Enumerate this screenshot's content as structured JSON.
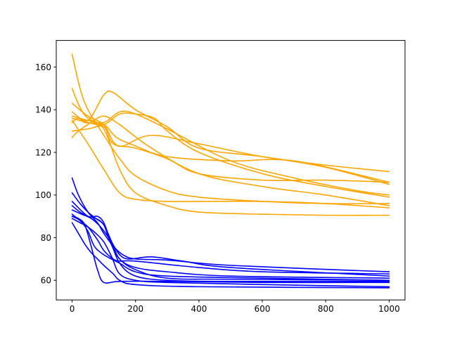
{
  "chart_data": {
    "type": "line",
    "title": "",
    "xlabel": "",
    "ylabel": "",
    "xlim": [
      -50,
      1050
    ],
    "ylim": [
      50.8,
      172.5
    ],
    "x_ticks": [
      0,
      200,
      400,
      600,
      800,
      1000
    ],
    "y_ticks": [
      60,
      80,
      100,
      120,
      140,
      160
    ],
    "grid": false,
    "legend": "none",
    "series": [
      {
        "color": "#FFA500",
        "x": [
          0,
          25,
          50,
          100,
          150,
          200,
          300,
          400,
          600,
          800,
          1000
        ],
        "y": [
          166,
          150,
          140,
          128,
          117,
          109,
          102,
          99,
          97,
          96,
          96
        ]
      },
      {
        "color": "#FFA500",
        "x": [
          0,
          25,
          50,
          100,
          150,
          200,
          300,
          400,
          600,
          800,
          1000
        ],
        "y": [
          150,
          141,
          136,
          131,
          112,
          101,
          95,
          92,
          91,
          90.5,
          90.5
        ]
      },
      {
        "color": "#FFA500",
        "x": [
          0,
          50,
          100,
          130,
          160,
          250,
          400,
          600,
          800,
          1000
        ],
        "y": [
          143,
          137,
          133,
          125,
          123,
          128,
          124,
          118,
          114,
          111
        ]
      },
      {
        "color": "#FFA500",
        "x": [
          0,
          50,
          100,
          130,
          200,
          300,
          400,
          600,
          800,
          1000
        ],
        "y": [
          139,
          135,
          147,
          148,
          140,
          132,
          122,
          118,
          113,
          105
        ]
      },
      {
        "color": "#FFA500",
        "x": [
          0,
          50,
          100,
          150,
          200,
          300,
          500,
          700,
          900,
          1000
        ],
        "y": [
          137,
          135,
          134,
          139,
          138,
          131,
          116,
          108,
          102,
          100
        ]
      },
      {
        "color": "#FFA500",
        "x": [
          0,
          50,
          100,
          150,
          200,
          260,
          300,
          400,
          600,
          800,
          1000
        ],
        "y": [
          136,
          134,
          133,
          138,
          138,
          136,
          130,
          120,
          110,
          104,
          99
        ]
      },
      {
        "color": "#FFA500",
        "x": [
          0,
          20,
          40,
          100,
          140,
          200,
          300,
          500,
          700,
          1000
        ],
        "y": [
          134,
          136,
          134,
          133,
          127,
          123,
          118,
          116,
          116,
          106
        ]
      },
      {
        "color": "#FFA500",
        "x": [
          0,
          50,
          100,
          130,
          200,
          300,
          400,
          600,
          800,
          1000
        ],
        "y": [
          130,
          131,
          132,
          124,
          122,
          117,
          110,
          107,
          107,
          106
        ]
      },
      {
        "color": "#FFA500",
        "x": [
          0,
          20,
          60,
          100,
          150,
          250,
          400,
          600,
          800,
          1000
        ],
        "y": [
          127,
          130,
          134,
          137,
          133,
          122,
          110,
          104,
          100,
          95
        ]
      },
      {
        "color": "#FFA500",
        "x": [
          0,
          50,
          100,
          150,
          200,
          300,
          400,
          600,
          800,
          1000
        ],
        "y": [
          135,
          124,
          112,
          101,
          98,
          97,
          97,
          97,
          96,
          94
        ]
      },
      {
        "color": "#0000FF",
        "x": [
          0,
          20,
          50,
          80,
          100,
          130,
          160,
          200,
          300,
          500,
          1000
        ],
        "y": [
          108,
          100,
          92,
          87,
          82,
          76,
          72,
          70,
          69.5,
          67,
          64
        ]
      },
      {
        "color": "#0000FF",
        "x": [
          0,
          25,
          50,
          75,
          100,
          125,
          150,
          200,
          300,
          500,
          1000
        ],
        "y": [
          101,
          96,
          92,
          89,
          86,
          78,
          70,
          66,
          64,
          62,
          61
        ]
      },
      {
        "color": "#0000FF",
        "x": [
          0,
          50,
          80,
          100,
          120,
          150,
          200,
          300,
          500,
          1000
        ],
        "y": [
          97,
          90,
          90,
          87,
          79,
          68,
          62,
          60,
          59.5,
          59.5
        ]
      },
      {
        "color": "#0000FF",
        "x": [
          0,
          25,
          50,
          75,
          100,
          120,
          150,
          200,
          300,
          500,
          1000
        ],
        "y": [
          95,
          92,
          90,
          89,
          86,
          78,
          70,
          65,
          61,
          60.5,
          60
        ]
      },
      {
        "color": "#0000FF",
        "x": [
          0,
          30,
          60,
          90,
          120,
          150,
          180,
          250,
          350,
          500,
          1000
        ],
        "y": [
          93,
          91,
          89,
          85,
          79,
          72,
          70,
          71,
          69,
          66,
          62
        ]
      },
      {
        "color": "#0000FF",
        "x": [
          0,
          25,
          50,
          80,
          100,
          130,
          150,
          200,
          400,
          600,
          1000
        ],
        "y": [
          91,
          88,
          85,
          79,
          74,
          70,
          69,
          69,
          66,
          64,
          63
        ]
      },
      {
        "color": "#0000FF",
        "x": [
          0,
          25,
          50,
          70,
          100,
          150,
          200,
          300,
          600,
          1000
        ],
        "y": [
          90,
          88,
          83,
          76,
          72,
          68,
          64,
          62,
          61,
          60
        ]
      },
      {
        "color": "#0000FF",
        "x": [
          0,
          20,
          40,
          60,
          80,
          100,
          150,
          300,
          600,
          1000
        ],
        "y": [
          90,
          89,
          86,
          76,
          65,
          59,
          59.5,
          59.5,
          59,
          59
        ]
      },
      {
        "color": "#0000FF",
        "x": [
          0,
          25,
          50,
          75,
          100,
          125,
          150,
          200,
          300,
          600,
          1000
        ],
        "y": [
          89,
          87,
          85,
          82,
          78,
          71,
          63,
          60,
          59,
          58,
          57
        ]
      },
      {
        "color": "#0000FF",
        "x": [
          0,
          20,
          40,
          60,
          80,
          100,
          130,
          150,
          200,
          400,
          1000
        ],
        "y": [
          87,
          82,
          77,
          73,
          70,
          67,
          63,
          60,
          58,
          57,
          56.5
        ]
      }
    ]
  }
}
